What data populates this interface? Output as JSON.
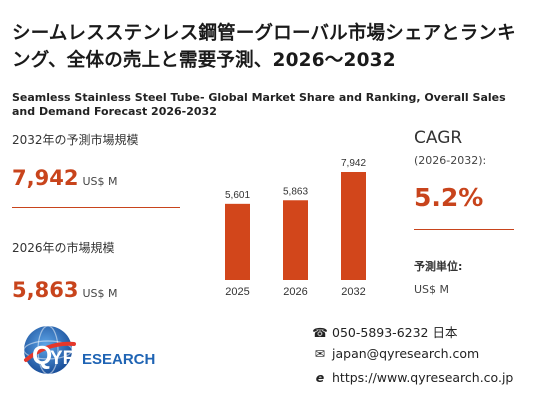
{
  "title_jp": "シームレスステンレス鋼管ーグローバル市場シェアとランキング、全体の売上と需要予測、2026〜2032",
  "title_en": "Seamless Stainless Steel Tube- Global Market Share and Ranking, Overall Sales and Demand Forecast 2026-2032",
  "stat_2032": {
    "label": "2032年の予測市場規模",
    "value": "7,942",
    "unit": "US$ M"
  },
  "stat_2026": {
    "label": "2026年の市場規模",
    "value": "5,863",
    "unit": "US$ M"
  },
  "cagr": {
    "title": "CAGR",
    "range": "(2026-2032):",
    "value": "5.2%"
  },
  "forecast_unit": {
    "title": "予測単位:",
    "value": "US$ M"
  },
  "chart_data": {
    "type": "bar",
    "categories": [
      "2025",
      "2026",
      "2032"
    ],
    "values": [
      5601,
      5863,
      7942
    ],
    "value_labels": [
      "5,601",
      "5,863",
      "7,942"
    ],
    "color": "#d2461b"
  },
  "logo": {
    "brand_q": "Q",
    "brand_yr": "YR",
    "brand_rest": "ESEARCH"
  },
  "contact": {
    "phone": "050-5893-6232 日本",
    "email": "japan@qyresearch.com",
    "web": "https://www.qyresearch.co.jp"
  },
  "colors": {
    "accent": "#c8441c",
    "brand_blue": "#1f64b4"
  }
}
